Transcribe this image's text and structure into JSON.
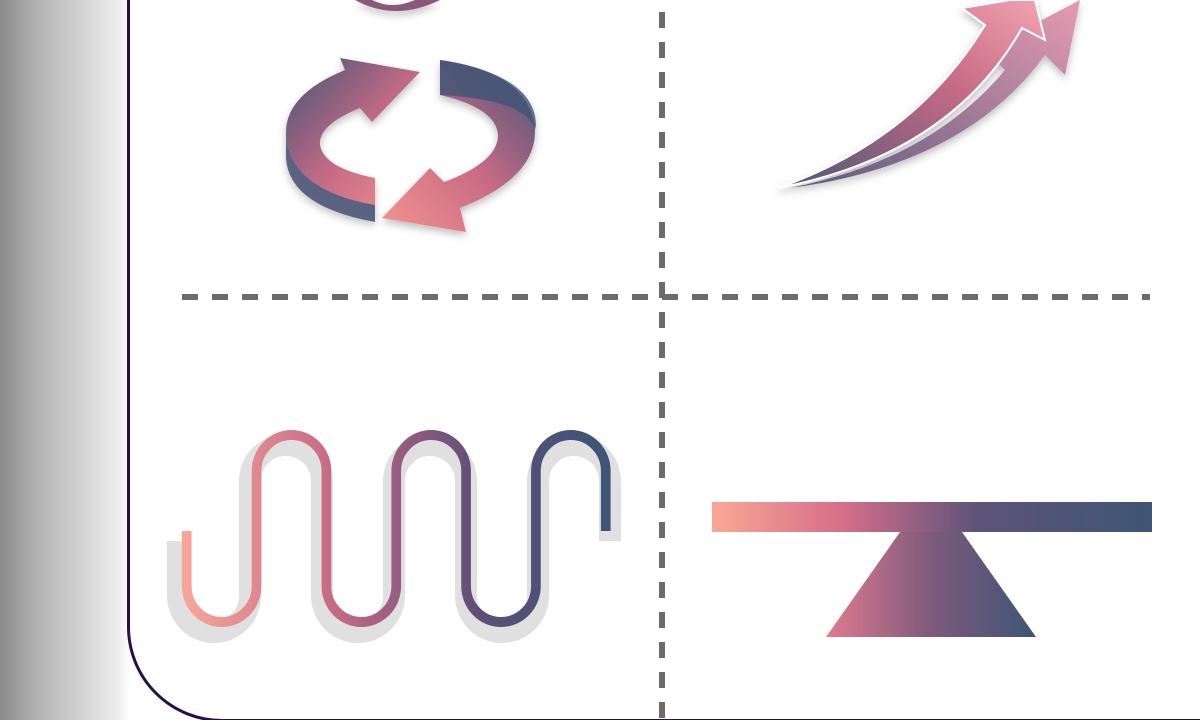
{
  "colors": {
    "pink": "#f7a49a",
    "coral": "#ef8a8a",
    "rose": "#c66a85",
    "mauve": "#8a5878",
    "slate": "#4d5777",
    "navy": "#3e5576",
    "divider": "#6b6b6b",
    "panel_border": "#2a0e45"
  },
  "icons": {
    "top_left": "cycle-arrows-icon",
    "top_right": "growth-arrow-icon",
    "bottom_left": "wave-path-icon",
    "bottom_right": "balance-seesaw-icon"
  }
}
